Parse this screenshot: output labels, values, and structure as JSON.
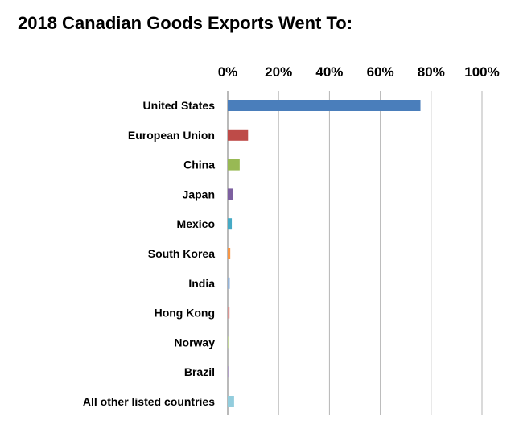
{
  "chart_data": {
    "type": "bar",
    "orientation": "horizontal",
    "title": "2018 Canadian Goods Exports Went To:",
    "xlabel": "",
    "ylabel": "",
    "xlim": [
      0,
      100
    ],
    "x_ticks": [
      "0%",
      "20%",
      "40%",
      "60%",
      "80%",
      "100%"
    ],
    "x_tick_values": [
      0,
      20,
      40,
      60,
      80,
      100
    ],
    "x_axis_position": "top",
    "grid": true,
    "legend": "none",
    "categories": [
      "United States",
      "European Union",
      "China",
      "Japan",
      "Mexico",
      "South Korea",
      "India",
      "Hong Kong",
      "Norway",
      "Brazil",
      "All other listed countries"
    ],
    "values": [
      75.8,
      8.0,
      4.7,
      2.2,
      1.6,
      1.0,
      0.8,
      0.7,
      0.4,
      0.3,
      2.5
    ],
    "colors": [
      "#4a7ebb",
      "#be4b48",
      "#98b954",
      "#7d60a0",
      "#46aac5",
      "#f79646",
      "#95b3d7",
      "#d99694",
      "#c3d69b",
      "#b3a2c7",
      "#93cddd"
    ]
  }
}
